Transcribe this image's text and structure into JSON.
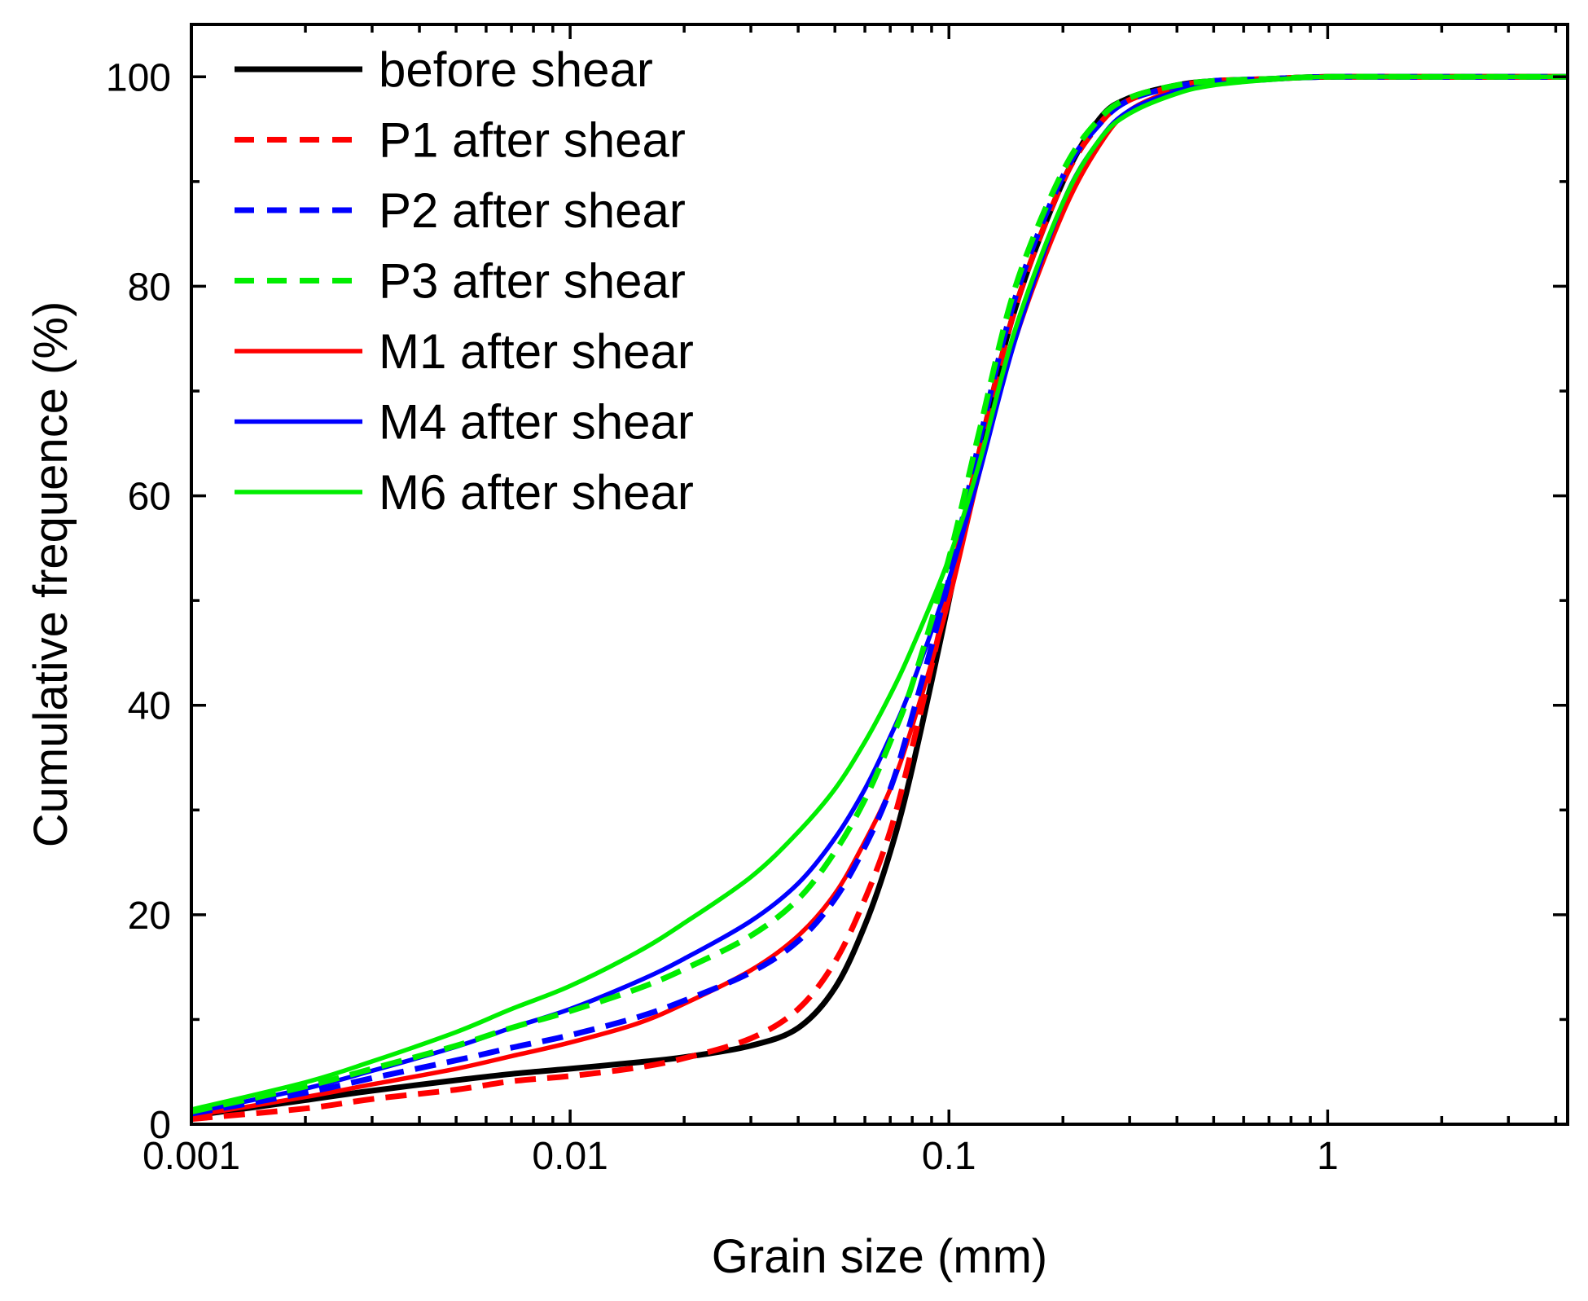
{
  "chart_data": {
    "type": "line",
    "title": "",
    "xlabel": "Grain size (mm)",
    "ylabel": "Cumulative frequence (%)",
    "xscale": "log",
    "xlim": [
      0.001,
      4.3
    ],
    "ylim": [
      0,
      105
    ],
    "x_ticks": [
      0.001,
      0.01,
      0.1,
      1
    ],
    "x_tick_labels": [
      "0.001",
      "0.01",
      "0.1",
      "1"
    ],
    "y_ticks": [
      0,
      20,
      40,
      60,
      80,
      100
    ],
    "y_tick_labels": [
      "0",
      "20",
      "40",
      "60",
      "80",
      "100"
    ],
    "legend_position": "top-left",
    "x": [
      0.001,
      0.002,
      0.003,
      0.005,
      0.007,
      0.01,
      0.015,
      0.02,
      0.03,
      0.04,
      0.05,
      0.06,
      0.07,
      0.08,
      0.1,
      0.12,
      0.15,
      0.2,
      0.25,
      0.3,
      0.4,
      0.5,
      0.7,
      1,
      2,
      4.3
    ],
    "series": [
      {
        "name": "before shear",
        "color": "#000000",
        "dash": "solid",
        "width": "thick",
        "values": [
          0.8,
          2.3,
          3.2,
          4.2,
          4.8,
          5.3,
          5.9,
          6.4,
          7.5,
          9.2,
          13,
          19,
          26,
          34,
          50,
          64,
          78,
          90,
          96,
          98,
          99.2,
          99.6,
          99.8,
          100,
          100,
          100
        ]
      },
      {
        "name": "P1 after shear",
        "color": "#ff0000",
        "dash": "dashed",
        "width": "thick",
        "values": [
          0.5,
          1.5,
          2.4,
          3.3,
          4.1,
          4.6,
          5.4,
          6.3,
          8.2,
          11,
          15.5,
          21.5,
          28,
          36,
          51,
          64,
          78,
          90,
          95.5,
          97.8,
          99.1,
          99.6,
          99.8,
          100,
          100,
          100
        ]
      },
      {
        "name": "P2 after shear",
        "color": "#0000ff",
        "dash": "dashed",
        "width": "thick",
        "values": [
          1.0,
          3.0,
          4.4,
          6.1,
          7.3,
          8.5,
          10.2,
          11.8,
          14.5,
          17.5,
          21.5,
          26.5,
          32,
          39,
          52,
          65,
          79,
          90.5,
          95.5,
          97.8,
          99.1,
          99.6,
          99.8,
          100,
          100,
          100
        ]
      },
      {
        "name": "P3 after shear",
        "color": "#00ee00",
        "dash": "dashed",
        "width": "thick",
        "values": [
          1.2,
          3.6,
          5.3,
          7.5,
          9.2,
          10.8,
          12.9,
          14.8,
          18,
          21.5,
          26,
          31,
          36.5,
          42,
          54,
          66,
          80,
          91,
          96,
          98,
          99.2,
          99.6,
          99.8,
          100,
          100,
          100
        ]
      },
      {
        "name": "M1 after shear",
        "color": "#ff0000",
        "dash": "solid",
        "width": "normal",
        "values": [
          0.8,
          2.6,
          3.8,
          5.3,
          6.5,
          7.8,
          9.6,
          11.5,
          14.7,
          18,
          22,
          27,
          32,
          38,
          50,
          62,
          75,
          87,
          93.5,
          96.8,
          98.8,
          99.5,
          99.8,
          100,
          100,
          100
        ]
      },
      {
        "name": "M4 after shear",
        "color": "#0000ff",
        "dash": "solid",
        "width": "normal",
        "values": [
          1.1,
          3.4,
          5.1,
          7.4,
          9.2,
          11,
          13.6,
          15.8,
          19.4,
          23,
          27.3,
          32,
          37,
          42,
          52,
          62,
          75,
          88,
          94,
          96.8,
          98.6,
          99.3,
          99.7,
          100,
          100,
          100
        ]
      },
      {
        "name": "M6 after shear",
        "color": "#00ee00",
        "dash": "solid",
        "width": "normal",
        "values": [
          1.4,
          4.0,
          6.0,
          8.8,
          11,
          13.2,
          16.4,
          19.2,
          23.6,
          27.9,
          32,
          36.5,
          41,
          45.5,
          54,
          63,
          76,
          88,
          94,
          96.5,
          98.4,
          99.2,
          99.7,
          100,
          100,
          100
        ]
      }
    ]
  }
}
